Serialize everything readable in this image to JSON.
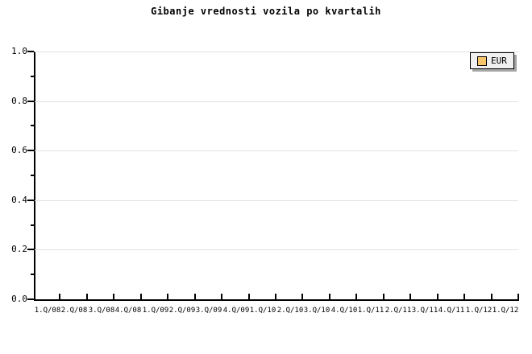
{
  "chart_data": {
    "type": "line",
    "title": "Gibanje vrednosti vozila po kvartalih",
    "xlabel": "",
    "ylabel": "",
    "categories": [
      "1.Q/08",
      "2.Q/08",
      "3.Q/08",
      "4.Q/08",
      "1.Q/09",
      "2.Q/09",
      "3.Q/09",
      "4.Q/09",
      "1.Q/10",
      "2.Q/10",
      "3.Q/10",
      "4.Q/10",
      "1.Q/11",
      "2.Q/11",
      "3.Q/11",
      "4.Q/11",
      "1.Q/12",
      "1.Q/12"
    ],
    "series": [
      {
        "name": "EUR",
        "color": "#f8c46c",
        "values": []
      }
    ],
    "plot_is_empty": true,
    "ylim": [
      0.0,
      1.0
    ],
    "y_ticks": [
      0.0,
      0.2,
      0.4,
      0.6,
      0.8,
      1.0
    ],
    "y_tick_labels": [
      "0.0",
      "0.2",
      "0.4",
      "0.6",
      "0.8",
      "1.0"
    ],
    "y_minor_ticks": [
      0.1,
      0.3,
      0.5,
      0.7,
      0.9
    ],
    "grid": "horizontal-major",
    "legend_position": "top-right"
  },
  "legend": {
    "items": [
      {
        "label": "EUR",
        "swatch_color": "#f8c46c"
      }
    ]
  },
  "colors": {
    "background": "#ffffff",
    "axis": "#000000",
    "gridline": "#e0e0e0",
    "legend_bg": "#f0f0f0",
    "legend_border": "#000000",
    "legend_shadow": "#a6a6a6"
  }
}
